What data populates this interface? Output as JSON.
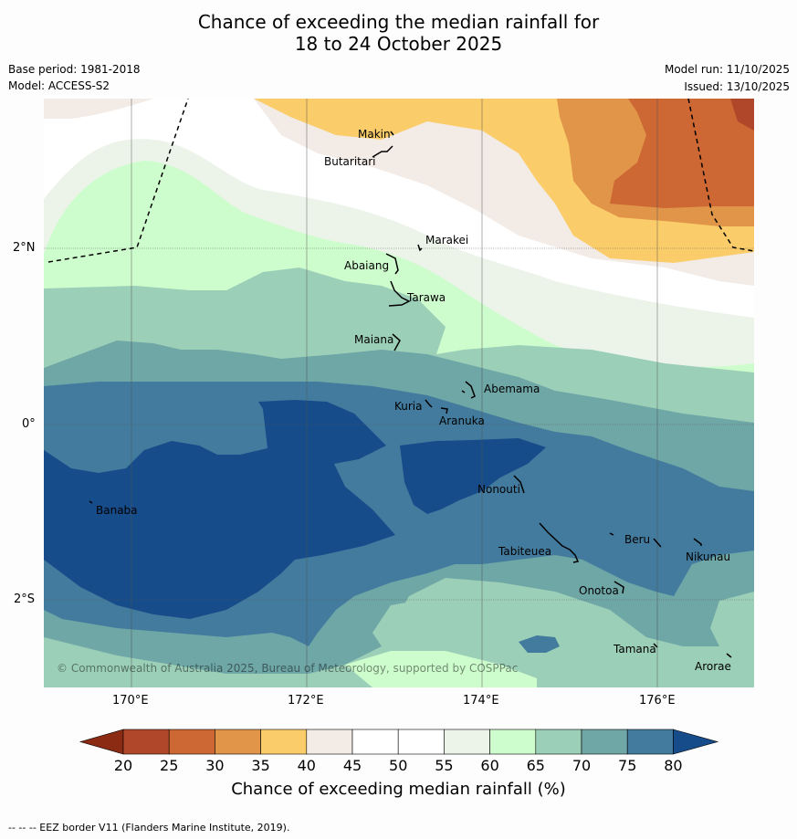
{
  "title": {
    "line1": "Chance of exceeding the median rainfall for",
    "line2": "18 to 24 October 2025"
  },
  "meta": {
    "base_period": "Base period: 1981-2018",
    "model": "Model: ACCESS-S2",
    "model_run": "Model run: 11/10/2025",
    "issued": "Issued: 13/10/2025"
  },
  "axes": {
    "lat_ticks": [
      "2°N",
      "0°",
      "2°S"
    ],
    "lon_ticks": [
      "170°E",
      "172°E",
      "174°E",
      "176°E"
    ]
  },
  "islands": [
    "Makin",
    "Butaritari",
    "Marakei",
    "Abaiang",
    "Tarawa",
    "Maiana",
    "Abemama",
    "Kuria",
    "Aranuka",
    "Nonouti",
    "Banaba",
    "Tabiteuea",
    "Beru",
    "Nikunau",
    "Onotoa",
    "Tamana",
    "Arorae"
  ],
  "copyright": "© Commonwealth of Australia 2025, Bureau of Meteorology, supported by COSPPac",
  "colorbar": {
    "ticks": [
      "20",
      "25",
      "30",
      "35",
      "40",
      "45",
      "50",
      "55",
      "60",
      "65",
      "70",
      "75",
      "80"
    ],
    "title": "Chance of exceeding median rainfall (%)",
    "colors": {
      "lt20": "#8b2b14",
      "c20": "#b1472a",
      "c25": "#cd6733",
      "c30": "#e09549",
      "c35": "#fbcd6a",
      "c40": "#f2ebe6",
      "c45": "#ffffff",
      "c50": "#ffffff",
      "c55": "#ecf4ea",
      "c60": "#cdfccd",
      "c65": "#9ccfb8",
      "c70": "#6fa6a6",
      "c75": "#437b9e",
      "gt80": "#164c8a"
    }
  },
  "footer": "--  --  -- EEZ border V11 (Flanders Marine Institute, 2019)."
}
